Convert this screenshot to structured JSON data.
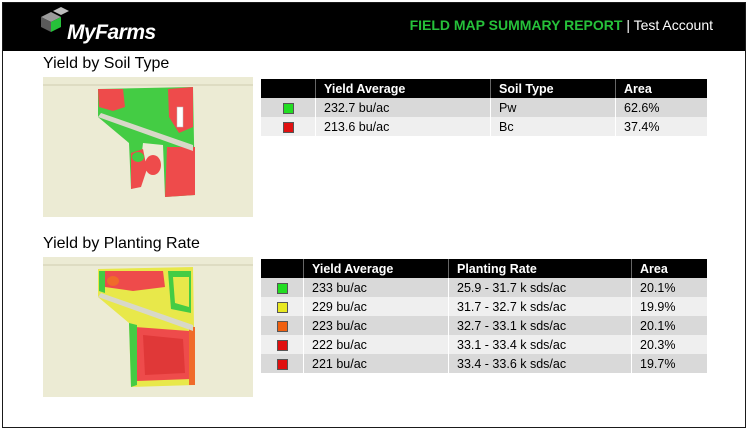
{
  "header": {
    "logo_text": "MyFarms",
    "report_title": "FIELD MAP SUMMARY REPORT",
    "separator": " | ",
    "account": "Test Account"
  },
  "soil_section": {
    "title": "Yield by Soil Type",
    "columns": [
      "",
      "Yield Average",
      "Soil Type",
      "Area"
    ],
    "rows": [
      {
        "color": "#22dd22",
        "yield": "232.7 bu/ac",
        "soil": "Pw",
        "area": "62.6%"
      },
      {
        "color": "#e01010",
        "yield": "213.6 bu/ac",
        "soil": "Bc",
        "area": "37.4%"
      }
    ]
  },
  "planting_section": {
    "title": "Yield by Planting Rate",
    "columns": [
      "",
      "Yield Average",
      "Planting Rate",
      "Area"
    ],
    "rows": [
      {
        "color": "#22dd22",
        "yield": "233 bu/ac",
        "rate": "25.9 - 31.7 k sds/ac",
        "area": "20.1%"
      },
      {
        "color": "#e8e820",
        "yield": "229 bu/ac",
        "rate": "31.7 - 32.7 k sds/ac",
        "area": "19.9%"
      },
      {
        "color": "#f06010",
        "yield": "223 bu/ac",
        "rate": "32.7 - 33.1 k sds/ac",
        "area": "20.1%"
      },
      {
        "color": "#e01010",
        "yield": "222 bu/ac",
        "rate": "33.1 - 33.4 k sds/ac",
        "area": "20.3%"
      },
      {
        "color": "#e01010",
        "yield": "221 bu/ac",
        "rate": "33.4 - 33.6 k sds/ac",
        "area": "19.7%"
      }
    ]
  },
  "colors": {
    "brand_green": "#26c13a",
    "header_bg": "#000000",
    "map_bg": "#ecebd4",
    "map_green": "#44cc44",
    "map_red": "#ee4b4b",
    "map_yellow": "#e8e84a"
  }
}
